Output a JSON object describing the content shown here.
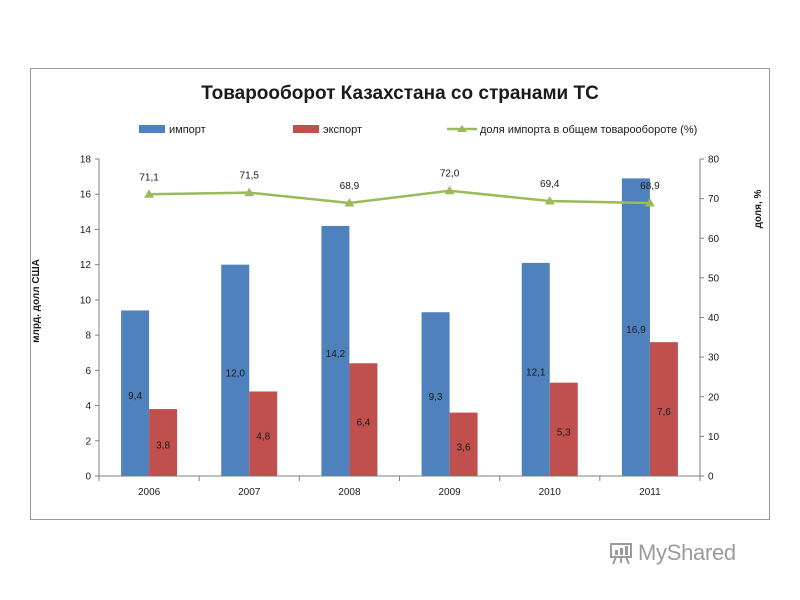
{
  "chart_data": {
    "type": "bar",
    "title": "Товарооборот Казахстана со странами ТС",
    "categories": [
      "2006",
      "2007",
      "2008",
      "2009",
      "2010",
      "2011"
    ],
    "series": [
      {
        "name": "импорт",
        "type": "bar",
        "axis": "left",
        "color": "#4f81bd",
        "values": [
          9.4,
          12.0,
          14.2,
          9.3,
          12.1,
          16.9
        ],
        "labels": [
          "9,4",
          "12,0",
          "14,2",
          "9,3",
          "12,1",
          "16,9"
        ]
      },
      {
        "name": "экспорт",
        "type": "bar",
        "axis": "left",
        "color": "#c0504d",
        "values": [
          3.8,
          4.8,
          6.4,
          3.6,
          5.3,
          7.6
        ],
        "labels": [
          "3,8",
          "4,8",
          "6,4",
          "3,6",
          "5,3",
          "7,6"
        ]
      },
      {
        "name": "доля импорта в общем товарообороте (%)",
        "type": "line",
        "axis": "right",
        "color": "#9bbb59",
        "values": [
          71.1,
          71.5,
          68.9,
          72.0,
          69.4,
          68.9
        ],
        "labels": [
          "71,1",
          "71,5",
          "68,9",
          "72,0",
          "69,4",
          "68,9"
        ]
      }
    ],
    "ylabel": "млрд. долл США",
    "y2label": "доля, %",
    "ylim": [
      0,
      18
    ],
    "y2lim": [
      0,
      80
    ],
    "yticks": [
      "0",
      "2",
      "4",
      "6",
      "8",
      "10",
      "12",
      "14",
      "16",
      "18"
    ],
    "y2ticks": [
      "0",
      "10",
      "20",
      "30",
      "40",
      "50",
      "60",
      "70",
      "80"
    ],
    "grid": false,
    "legend": "top"
  },
  "watermark": {
    "text": "MyShared",
    "icon": "presentation-board-icon",
    "color": "#9b9b9b"
  }
}
